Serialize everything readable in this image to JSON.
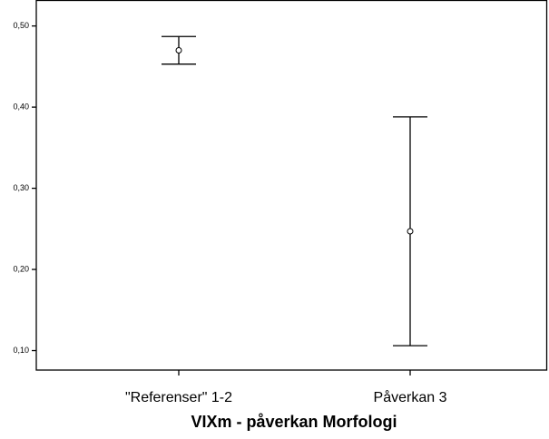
{
  "chart_data": {
    "type": "errorbar",
    "x_label": "VIXm - påverkan Morfologi",
    "categories": [
      "\"Referenser\" 1-2",
      "Påverkan 3"
    ],
    "values": [
      0.47,
      0.247
    ],
    "errors": [
      0.017,
      0.141
    ],
    "color": "#000000",
    "ylim": [
      0.076,
      0.532
    ],
    "yticks": [
      {
        "value": 0.1,
        "label": "0,10"
      },
      {
        "value": 0.2,
        "label": "0,20"
      },
      {
        "value": 0.3,
        "label": "0,30"
      },
      {
        "value": 0.4,
        "label": "0,40"
      },
      {
        "value": 0.5,
        "label": "0,50"
      }
    ]
  }
}
